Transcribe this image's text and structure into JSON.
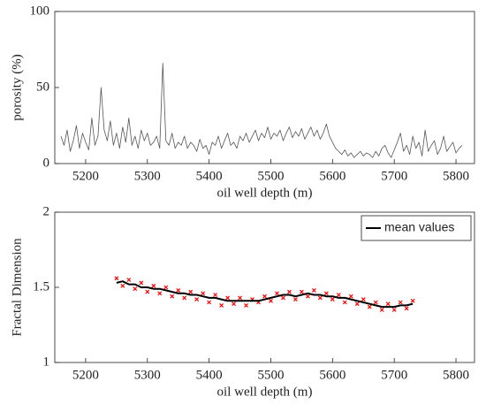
{
  "chart_data": [
    {
      "type": "line",
      "xlabel": "oil well depth (m)",
      "ylabel": "porosity (%)",
      "xlim": [
        5150,
        5830
      ],
      "xticks": [
        5200,
        5300,
        5400,
        5500,
        5600,
        5700,
        5800
      ],
      "ylim": [
        0,
        100
      ],
      "yticks": [
        0,
        50,
        100
      ],
      "color": "#555555",
      "x": [
        5160,
        5165,
        5170,
        5175,
        5180,
        5185,
        5190,
        5195,
        5200,
        5205,
        5210,
        5215,
        5220,
        5225,
        5230,
        5235,
        5240,
        5245,
        5250,
        5255,
        5260,
        5265,
        5270,
        5275,
        5280,
        5285,
        5290,
        5295,
        5300,
        5305,
        5310,
        5315,
        5320,
        5325,
        5330,
        5335,
        5340,
        5345,
        5350,
        5355,
        5360,
        5365,
        5370,
        5375,
        5380,
        5385,
        5390,
        5395,
        5400,
        5405,
        5410,
        5415,
        5420,
        5425,
        5430,
        5435,
        5440,
        5445,
        5450,
        5455,
        5460,
        5465,
        5470,
        5475,
        5480,
        5485,
        5490,
        5495,
        5500,
        5505,
        5510,
        5515,
        5520,
        5525,
        5530,
        5535,
        5540,
        5545,
        5550,
        5555,
        5560,
        5565,
        5570,
        5575,
        5580,
        5585,
        5590,
        5595,
        5600,
        5605,
        5610,
        5615,
        5620,
        5625,
        5630,
        5635,
        5640,
        5645,
        5650,
        5655,
        5660,
        5665,
        5670,
        5675,
        5680,
        5685,
        5690,
        5695,
        5700,
        5705,
        5710,
        5715,
        5720,
        5725,
        5730,
        5735,
        5740,
        5745,
        5750,
        5755,
        5760,
        5765,
        5770,
        5775,
        5780,
        5785,
        5790,
        5795,
        5800,
        5805,
        5810
      ],
      "values": [
        18,
        12,
        22,
        8,
        15,
        25,
        10,
        20,
        14,
        9,
        30,
        12,
        18,
        50,
        22,
        15,
        28,
        12,
        20,
        10,
        24,
        14,
        30,
        12,
        18,
        10,
        22,
        15,
        20,
        12,
        14,
        18,
        10,
        66,
        15,
        12,
        20,
        10,
        14,
        12,
        18,
        10,
        14,
        12,
        8,
        16,
        10,
        12,
        6,
        14,
        12,
        18,
        10,
        15,
        20,
        12,
        14,
        10,
        18,
        15,
        20,
        14,
        18,
        22,
        15,
        20,
        17,
        24,
        16,
        20,
        18,
        22,
        15,
        20,
        24,
        17,
        21,
        18,
        23,
        16,
        20,
        24,
        18,
        22,
        16,
        20,
        26,
        18,
        14,
        10,
        8,
        6,
        9,
        5,
        7,
        4,
        6,
        8,
        5,
        7,
        6,
        4,
        8,
        5,
        10,
        12,
        7,
        4,
        9,
        14,
        20,
        8,
        12,
        6,
        18,
        10,
        14,
        5,
        22,
        8,
        12,
        15,
        6,
        10,
        18,
        8,
        11,
        14,
        7,
        10,
        12
      ]
    },
    {
      "type": "scatter",
      "xlabel": "oil well depth (m)",
      "ylabel": "Fractal Dimension",
      "xlim": [
        5150,
        5830
      ],
      "xticks": [
        5200,
        5300,
        5400,
        5500,
        5600,
        5700,
        5800
      ],
      "ylim": [
        1,
        2
      ],
      "yticks": [
        1,
        1.5,
        2
      ],
      "legend": "upper right",
      "x": [
        5250,
        5260,
        5270,
        5280,
        5290,
        5300,
        5310,
        5320,
        5330,
        5340,
        5350,
        5360,
        5370,
        5380,
        5390,
        5400,
        5410,
        5420,
        5430,
        5440,
        5450,
        5460,
        5470,
        5480,
        5490,
        5500,
        5510,
        5520,
        5530,
        5540,
        5550,
        5560,
        5570,
        5580,
        5590,
        5600,
        5610,
        5620,
        5630,
        5640,
        5650,
        5660,
        5670,
        5680,
        5690,
        5700,
        5710,
        5720,
        5730
      ],
      "series": [
        {
          "type": "scatter",
          "color": "#ff0000",
          "values": [
            1.56,
            1.51,
            1.55,
            1.49,
            1.53,
            1.47,
            1.51,
            1.46,
            1.5,
            1.44,
            1.48,
            1.43,
            1.47,
            1.42,
            1.46,
            1.4,
            1.45,
            1.38,
            1.43,
            1.39,
            1.43,
            1.38,
            1.42,
            1.4,
            1.44,
            1.41,
            1.46,
            1.43,
            1.47,
            1.42,
            1.47,
            1.44,
            1.48,
            1.43,
            1.46,
            1.42,
            1.45,
            1.4,
            1.44,
            1.39,
            1.42,
            1.37,
            1.4,
            1.35,
            1.39,
            1.35,
            1.4,
            1.36,
            1.41
          ]
        },
        {
          "type": "line",
          "name": "mean values",
          "color": "#000000",
          "values": [
            1.53,
            1.54,
            1.52,
            1.52,
            1.5,
            1.5,
            1.49,
            1.49,
            1.48,
            1.47,
            1.46,
            1.46,
            1.45,
            1.45,
            1.44,
            1.43,
            1.43,
            1.42,
            1.41,
            1.41,
            1.41,
            1.41,
            1.41,
            1.41,
            1.42,
            1.43,
            1.44,
            1.45,
            1.45,
            1.44,
            1.45,
            1.46,
            1.45,
            1.45,
            1.44,
            1.44,
            1.43,
            1.43,
            1.42,
            1.41,
            1.4,
            1.39,
            1.38,
            1.37,
            1.37,
            1.37,
            1.38,
            1.38,
            1.39
          ]
        }
      ]
    }
  ]
}
